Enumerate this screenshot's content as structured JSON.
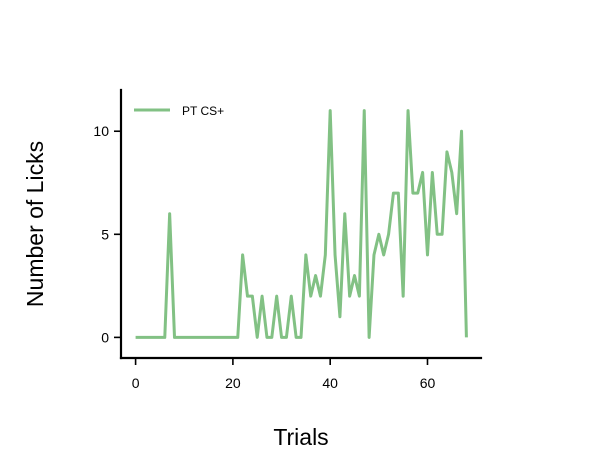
{
  "chart_data": {
    "type": "line",
    "xlabel": "Trials",
    "ylabel": "Number of Licks",
    "xlim": [
      -3,
      71
    ],
    "ylim": [
      -1,
      12
    ],
    "xticks": [
      0,
      20,
      40,
      60
    ],
    "yticks": [
      0,
      5,
      10
    ],
    "grid": false,
    "legend_position": "top-left",
    "series": [
      {
        "name": "PT CS+",
        "color": "#82c184",
        "x": [
          0,
          1,
          2,
          3,
          4,
          5,
          6,
          7,
          8,
          9,
          10,
          11,
          12,
          13,
          14,
          15,
          16,
          17,
          18,
          19,
          20,
          21,
          22,
          23,
          24,
          25,
          26,
          27,
          28,
          29,
          30,
          31,
          32,
          33,
          34,
          35,
          36,
          37,
          38,
          39,
          40,
          41,
          42,
          43,
          44,
          45,
          46,
          47,
          48,
          49,
          50,
          51,
          52,
          53,
          54,
          55,
          56,
          57,
          58,
          59,
          60,
          61,
          62,
          63,
          64,
          65,
          66,
          67,
          68
        ],
        "y": [
          0,
          0,
          0,
          0,
          0,
          0,
          0,
          6,
          0,
          0,
          0,
          0,
          0,
          0,
          0,
          0,
          0,
          0,
          0,
          0,
          0,
          0,
          4,
          2,
          2,
          0,
          2,
          0,
          0,
          2,
          0,
          0,
          2,
          0,
          0,
          4,
          2,
          3,
          2,
          4,
          11,
          4,
          1,
          6,
          2,
          3,
          2,
          11,
          0,
          4,
          5,
          4,
          5,
          7,
          7,
          2,
          11,
          7,
          7,
          8,
          4,
          8,
          5,
          5,
          9,
          8,
          6,
          10,
          0
        ]
      }
    ]
  }
}
